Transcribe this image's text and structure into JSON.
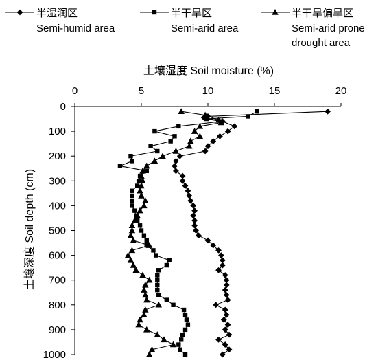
{
  "chart_data": {
    "type": "line",
    "xlabel": "土壤湿度 Soil moisture (%)",
    "ylabel": "土壤深度 Soil depth (cm)",
    "xlim": [
      0,
      20
    ],
    "ylim": [
      0,
      1000
    ],
    "x_axis_position": "top",
    "y_inverted": true,
    "x_ticks": [
      0,
      5,
      10,
      15,
      20
    ],
    "y_ticks": [
      0,
      100,
      200,
      300,
      400,
      500,
      600,
      700,
      800,
      900,
      1000
    ],
    "grid": false,
    "legend": {
      "position": "top"
    },
    "series": [
      {
        "name": "半湿润区",
        "name_en": "Semi-humid area",
        "marker": "diamond",
        "points": [
          [
            19.0,
            20
          ],
          [
            10.0,
            40
          ],
          [
            9.7,
            45
          ],
          [
            11.1,
            60
          ],
          [
            12.0,
            80
          ],
          [
            11.5,
            100
          ],
          [
            10.9,
            120
          ],
          [
            10.4,
            140
          ],
          [
            10.0,
            160
          ],
          [
            9.8,
            180
          ],
          [
            7.9,
            200
          ],
          [
            7.6,
            220
          ],
          [
            7.5,
            240
          ],
          [
            7.6,
            260
          ],
          [
            8.1,
            280
          ],
          [
            8.1,
            300
          ],
          [
            8.3,
            320
          ],
          [
            8.5,
            340
          ],
          [
            8.6,
            360
          ],
          [
            8.7,
            380
          ],
          [
            8.9,
            400
          ],
          [
            9.0,
            420
          ],
          [
            8.9,
            440
          ],
          [
            9.0,
            460
          ],
          [
            9.0,
            480
          ],
          [
            9.1,
            500
          ],
          [
            9.3,
            520
          ],
          [
            10.0,
            540
          ],
          [
            10.4,
            560
          ],
          [
            10.8,
            580
          ],
          [
            11.0,
            600
          ],
          [
            11.1,
            620
          ],
          [
            11.1,
            640
          ],
          [
            10.8,
            660
          ],
          [
            11.3,
            680
          ],
          [
            11.4,
            700
          ],
          [
            11.4,
            720
          ],
          [
            11.3,
            740
          ],
          [
            11.4,
            760
          ],
          [
            11.5,
            780
          ],
          [
            10.6,
            800
          ],
          [
            11.3,
            820
          ],
          [
            11.4,
            840
          ],
          [
            11.2,
            860
          ],
          [
            11.5,
            880
          ],
          [
            11.3,
            900
          ],
          [
            11.6,
            920
          ],
          [
            10.8,
            940
          ],
          [
            11.3,
            960
          ],
          [
            11.6,
            980
          ],
          [
            11.1,
            1000
          ]
        ]
      },
      {
        "name": "半干旱区",
        "name_en": "Semi-arid area",
        "marker": "square",
        "points": [
          [
            13.7,
            20
          ],
          [
            13.0,
            40
          ],
          [
            9.9,
            50
          ],
          [
            11.0,
            60
          ],
          [
            7.8,
            80
          ],
          [
            6.0,
            100
          ],
          [
            7.5,
            120
          ],
          [
            7.2,
            140
          ],
          [
            5.7,
            160
          ],
          [
            6.2,
            180
          ],
          [
            4.2,
            200
          ],
          [
            4.3,
            220
          ],
          [
            3.4,
            240
          ],
          [
            5.4,
            260
          ],
          [
            4.9,
            280
          ],
          [
            4.8,
            300
          ],
          [
            4.7,
            320
          ],
          [
            4.3,
            340
          ],
          [
            4.3,
            360
          ],
          [
            4.3,
            380
          ],
          [
            4.3,
            400
          ],
          [
            4.5,
            420
          ],
          [
            4.6,
            440
          ],
          [
            4.7,
            460
          ],
          [
            4.9,
            480
          ],
          [
            5.0,
            500
          ],
          [
            5.2,
            520
          ],
          [
            5.4,
            540
          ],
          [
            5.4,
            560
          ],
          [
            5.9,
            580
          ],
          [
            6.1,
            600
          ],
          [
            7.1,
            620
          ],
          [
            6.9,
            640
          ],
          [
            6.3,
            660
          ],
          [
            6.2,
            680
          ],
          [
            6.2,
            700
          ],
          [
            6.2,
            720
          ],
          [
            6.2,
            740
          ],
          [
            6.3,
            760
          ],
          [
            6.9,
            780
          ],
          [
            7.4,
            800
          ],
          [
            8.2,
            820
          ],
          [
            8.3,
            840
          ],
          [
            8.4,
            860
          ],
          [
            8.5,
            880
          ],
          [
            8.3,
            900
          ],
          [
            8.1,
            920
          ],
          [
            8.0,
            940
          ],
          [
            7.8,
            960
          ],
          [
            7.9,
            980
          ],
          [
            8.3,
            1000
          ]
        ]
      },
      {
        "name": "半干旱偏旱区",
        "name_en": "Semi-arid prone drought area",
        "marker": "triangle",
        "points": [
          [
            8.0,
            20
          ],
          [
            9.8,
            35
          ],
          [
            10.8,
            55
          ],
          [
            11.0,
            65
          ],
          [
            9.4,
            80
          ],
          [
            9.0,
            100
          ],
          [
            9.4,
            120
          ],
          [
            8.7,
            140
          ],
          [
            8.6,
            160
          ],
          [
            7.6,
            180
          ],
          [
            6.6,
            200
          ],
          [
            6.0,
            220
          ],
          [
            5.4,
            240
          ],
          [
            5.1,
            260
          ],
          [
            5.0,
            280
          ],
          [
            5.1,
            300
          ],
          [
            5.0,
            320
          ],
          [
            4.9,
            340
          ],
          [
            5.0,
            360
          ],
          [
            5.3,
            380
          ],
          [
            5.2,
            400
          ],
          [
            4.9,
            420
          ],
          [
            4.7,
            440
          ],
          [
            4.5,
            460
          ],
          [
            4.3,
            480
          ],
          [
            4.3,
            500
          ],
          [
            4.2,
            520
          ],
          [
            4.4,
            540
          ],
          [
            5.6,
            560
          ],
          [
            4.3,
            580
          ],
          [
            4.0,
            600
          ],
          [
            4.2,
            620
          ],
          [
            4.4,
            640
          ],
          [
            4.6,
            660
          ],
          [
            5.1,
            680
          ],
          [
            5.6,
            700
          ],
          [
            5.3,
            720
          ],
          [
            5.2,
            740
          ],
          [
            5.3,
            760
          ],
          [
            5.4,
            780
          ],
          [
            6.3,
            800
          ],
          [
            5.3,
            820
          ],
          [
            5.2,
            840
          ],
          [
            4.9,
            860
          ],
          [
            4.8,
            880
          ],
          [
            5.4,
            900
          ],
          [
            6.2,
            920
          ],
          [
            6.7,
            940
          ],
          [
            7.4,
            960
          ],
          [
            5.8,
            980
          ],
          [
            5.6,
            1000
          ]
        ]
      }
    ]
  },
  "legend_items": [
    {
      "label_cn": "半湿润区",
      "label_en_lines": [
        "Semi-humid area"
      ]
    },
    {
      "label_cn": "半干旱区",
      "label_en_lines": [
        "Semi-arid area"
      ]
    },
    {
      "label_cn": "半干旱偏旱区",
      "label_en_lines": [
        "Semi-arid prone",
        "drought area"
      ]
    }
  ]
}
